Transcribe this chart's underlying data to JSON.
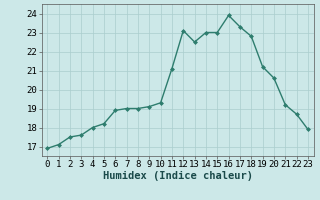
{
  "x": [
    0,
    1,
    2,
    3,
    4,
    5,
    6,
    7,
    8,
    9,
    10,
    11,
    12,
    13,
    14,
    15,
    16,
    17,
    18,
    19,
    20,
    21,
    22,
    23
  ],
  "y": [
    16.9,
    17.1,
    17.5,
    17.6,
    18.0,
    18.2,
    18.9,
    19.0,
    19.0,
    19.1,
    19.3,
    21.1,
    23.1,
    22.5,
    23.0,
    23.0,
    23.9,
    23.3,
    22.8,
    21.2,
    20.6,
    19.2,
    18.7,
    17.9
  ],
  "line_color": "#2e7d6e",
  "marker": "D",
  "marker_size": 2,
  "bg_color": "#cce8e8",
  "grid_color": "#aacece",
  "xlabel": "Humidex (Indice chaleur)",
  "ylim": [
    16.5,
    24.5
  ],
  "xlim": [
    -0.5,
    23.5
  ],
  "yticks": [
    17,
    18,
    19,
    20,
    21,
    22,
    23,
    24
  ],
  "xticks": [
    0,
    1,
    2,
    3,
    4,
    5,
    6,
    7,
    8,
    9,
    10,
    11,
    12,
    13,
    14,
    15,
    16,
    17,
    18,
    19,
    20,
    21,
    22,
    23
  ],
  "xlabel_fontsize": 7.5,
  "tick_fontsize": 6.5,
  "linewidth": 1.0
}
